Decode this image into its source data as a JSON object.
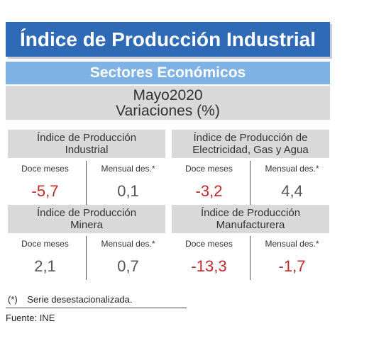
{
  "header": {
    "title": "Índice de Producción Industrial",
    "subtitle": "Sectores Económicos",
    "period": "Mayo2020",
    "measure": "Variaciones (%)"
  },
  "cards": [
    {
      "title_line1": "Índice de Producción",
      "title_line2": "Industrial",
      "label_left": "Doce meses",
      "label_right": "Mensual des.*",
      "value_left": "-5,7",
      "value_right": "0,1"
    },
    {
      "title_line1": "Índice de Producción de",
      "title_line2": "Electricidad, Gas y Agua",
      "label_left": "Doce meses",
      "label_right": "Mensual des.*",
      "value_left": "-3,2",
      "value_right": "4,4"
    },
    {
      "title_line1": "Índice de Producción",
      "title_line2": "Minera",
      "label_left": "Doce meses",
      "label_right": "Mensual des.*",
      "value_left": "2,1",
      "value_right": "0,7"
    },
    {
      "title_line1": "Índice de Producción",
      "title_line2": "Manufacturera",
      "label_left": "Doce meses",
      "label_right": "Mensual des.*",
      "value_left": "-13,3",
      "value_right": "-1,7"
    }
  ],
  "footnote": {
    "mark": "(*)",
    "text": "Serie desestacionalizada."
  },
  "source": "Fuente: INE",
  "colors": {
    "title_bg": "#2f6ab6",
    "subtitle_bg": "#7fb2e4",
    "panel_bg": "#d9d9d9",
    "negative": "#c0282a",
    "neutral": "#555555"
  }
}
